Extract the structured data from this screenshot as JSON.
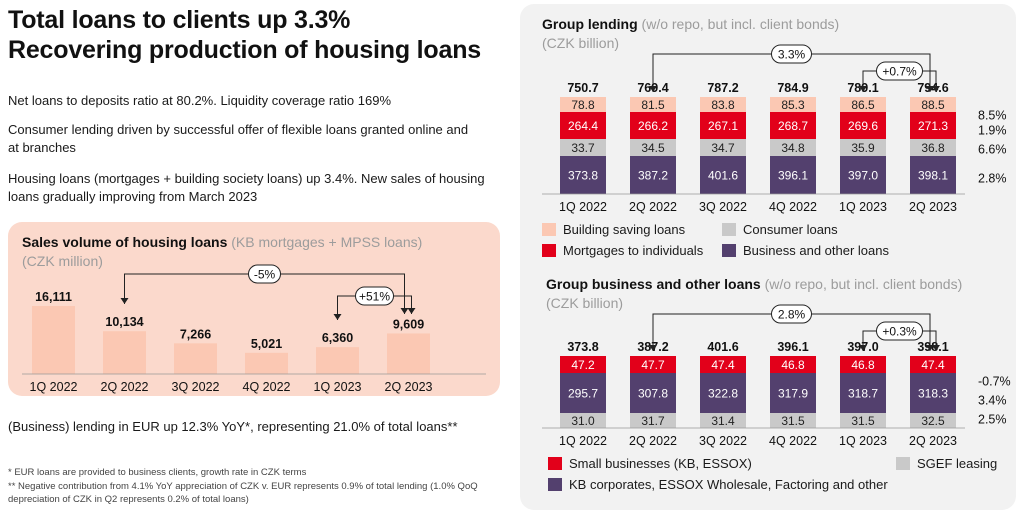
{
  "header": {
    "title_line1": "Total loans to clients up 3.3%",
    "title_line2": "Recovering production of housing loans"
  },
  "bullets": [
    "Net loans to deposits ratio at 80.2%. Liquidity coverage ratio 169%",
    "Consumer lending driven by successful offer of flexible loans granted online and at branches",
    "Housing loans (mortgages + building society loans) up 3.4%. New sales of housing loans gradually improving from March 2023",
    "(Business) lending in EUR up 12.3% YoY*, representing 21.0% of total loans**"
  ],
  "footnotes": [
    "* EUR loans are provided to business clients, growth rate in CZK terms",
    "** Negative contribution from 4.1% YoY appreciation of CZK v. EUR represents 0.9% of total lending (1.0% QoQ depreciation of CZK in Q2 represents 0.2% of total loans)"
  ],
  "colors": {
    "salmon_panel": "#fbd9cc",
    "salmon_bar": "#fbc8b3",
    "red": "#e2001a",
    "grey_bar": "#c9c9c9",
    "purple": "#53406e",
    "panel_grey": "#f2f2f2"
  },
  "chart_data": [
    {
      "type": "bar",
      "title": "Sales volume of housing loans",
      "subtitle": "(KB mortgages + MPSS loans)",
      "unit": "(CZK million)",
      "categories": [
        "1Q 2022",
        "2Q 2022",
        "3Q 2022",
        "4Q 2022",
        "1Q 2023",
        "2Q 2023"
      ],
      "values": [
        16111,
        10134,
        7266,
        5021,
        6360,
        9609
      ],
      "value_labels": [
        "16,111",
        "10,134",
        "7,266",
        "5,021",
        "6,360",
        "9,609"
      ],
      "annotations": [
        {
          "label": "-5%",
          "from": "2Q 2022",
          "to": "2Q 2023"
        },
        {
          "label": "+51%",
          "from": "1Q 2023",
          "to": "2Q 2023"
        }
      ],
      "ylim": [
        0,
        17000
      ]
    },
    {
      "type": "stacked_bar",
      "title": "Group lending",
      "subtitle": "(w/o repo, but incl. client bonds)",
      "unit": "(CZK billion)",
      "categories": [
        "1Q 2022",
        "2Q 2022",
        "3Q 2022",
        "4Q 2022",
        "1Q 2023",
        "2Q 2023"
      ],
      "totals": [
        "750.7",
        "769.4",
        "787.2",
        "784.9",
        "789.1",
        "794.6"
      ],
      "series": [
        {
          "name": "Business and other loans",
          "values": [
            373.8,
            387.2,
            401.6,
            396.1,
            397.0,
            398.1
          ],
          "labels": [
            "373.8",
            "387.2",
            "401.6",
            "396.1",
            "397.0",
            "398.1"
          ],
          "color": "#53406e",
          "growth": "2.8%"
        },
        {
          "name": "Consumer loans",
          "values": [
            33.7,
            34.5,
            34.7,
            34.8,
            35.9,
            36.8
          ],
          "labels": [
            "33.7",
            "34.5",
            "34.7",
            "34.8",
            "35.9",
            "36.8"
          ],
          "color": "#c9c9c9",
          "growth": "6.6%"
        },
        {
          "name": "Mortgages to individuals",
          "values": [
            264.4,
            266.2,
            267.1,
            268.7,
            269.6,
            271.3
          ],
          "labels": [
            "264.4",
            "266.2",
            "267.1",
            "268.7",
            "269.6",
            "271.3"
          ],
          "color": "#e2001a",
          "growth": "1.9%"
        },
        {
          "name": "Building saving loans",
          "values": [
            78.8,
            81.5,
            83.8,
            85.3,
            86.5,
            88.5
          ],
          "labels": [
            "78.8",
            "81.5",
            "83.8",
            "85.3",
            "86.5",
            "88.5"
          ],
          "color": "#fbc8b3",
          "growth": "8.5%"
        }
      ],
      "legend": [
        "Building saving loans",
        "Consumer loans",
        "Mortgages to individuals",
        "Business and other loans"
      ],
      "annotations": [
        {
          "label": "3.3%",
          "from": "2Q 2022",
          "to": "2Q 2023"
        },
        {
          "label": "+0.7%",
          "from": "1Q 2023",
          "to": "2Q 2023"
        }
      ]
    },
    {
      "type": "stacked_bar",
      "title": "Group business and other loans",
      "subtitle": "(w/o repo, but incl. client bonds)",
      "unit": "(CZK billion)",
      "categories": [
        "1Q 2022",
        "2Q 2022",
        "3Q 2022",
        "4Q 2022",
        "1Q 2023",
        "2Q 2023"
      ],
      "totals": [
        "373.8",
        "387.2",
        "401.6",
        "396.1",
        "397.0",
        "398.1"
      ],
      "series": [
        {
          "name": "SGEF leasing",
          "values": [
            31.0,
            31.7,
            31.4,
            31.5,
            31.5,
            32.5
          ],
          "labels": [
            "31.0",
            "31.7",
            "31.4",
            "31.5",
            "31.5",
            "32.5"
          ],
          "color": "#c9c9c9",
          "growth": "2.5%"
        },
        {
          "name": "KB corporates, ESSOX Wholesale, Factoring and other",
          "values": [
            295.7,
            307.8,
            322.8,
            317.9,
            318.7,
            318.3
          ],
          "labels": [
            "295.7",
            "307.8",
            "322.8",
            "317.9",
            "318.7",
            "318.3"
          ],
          "color": "#53406e",
          "growth": "3.4%"
        },
        {
          "name": "Small businesses (KB, ESSOX)",
          "values": [
            47.2,
            47.7,
            47.4,
            46.8,
            46.8,
            47.4
          ],
          "labels": [
            "47.2",
            "47.7",
            "47.4",
            "46.8",
            "46.8",
            "47.4"
          ],
          "color": "#e2001a",
          "growth": "-0.7%"
        }
      ],
      "legend": [
        "Small businesses (KB, ESSOX)",
        "SGEF leasing",
        "KB corporates, ESSOX Wholesale, Factoring and other"
      ],
      "annotations": [
        {
          "label": "2.8%",
          "from": "2Q 2022",
          "to": "2Q 2023"
        },
        {
          "label": "+0.3%",
          "from": "1Q 2023",
          "to": "2Q 2023"
        }
      ]
    }
  ]
}
